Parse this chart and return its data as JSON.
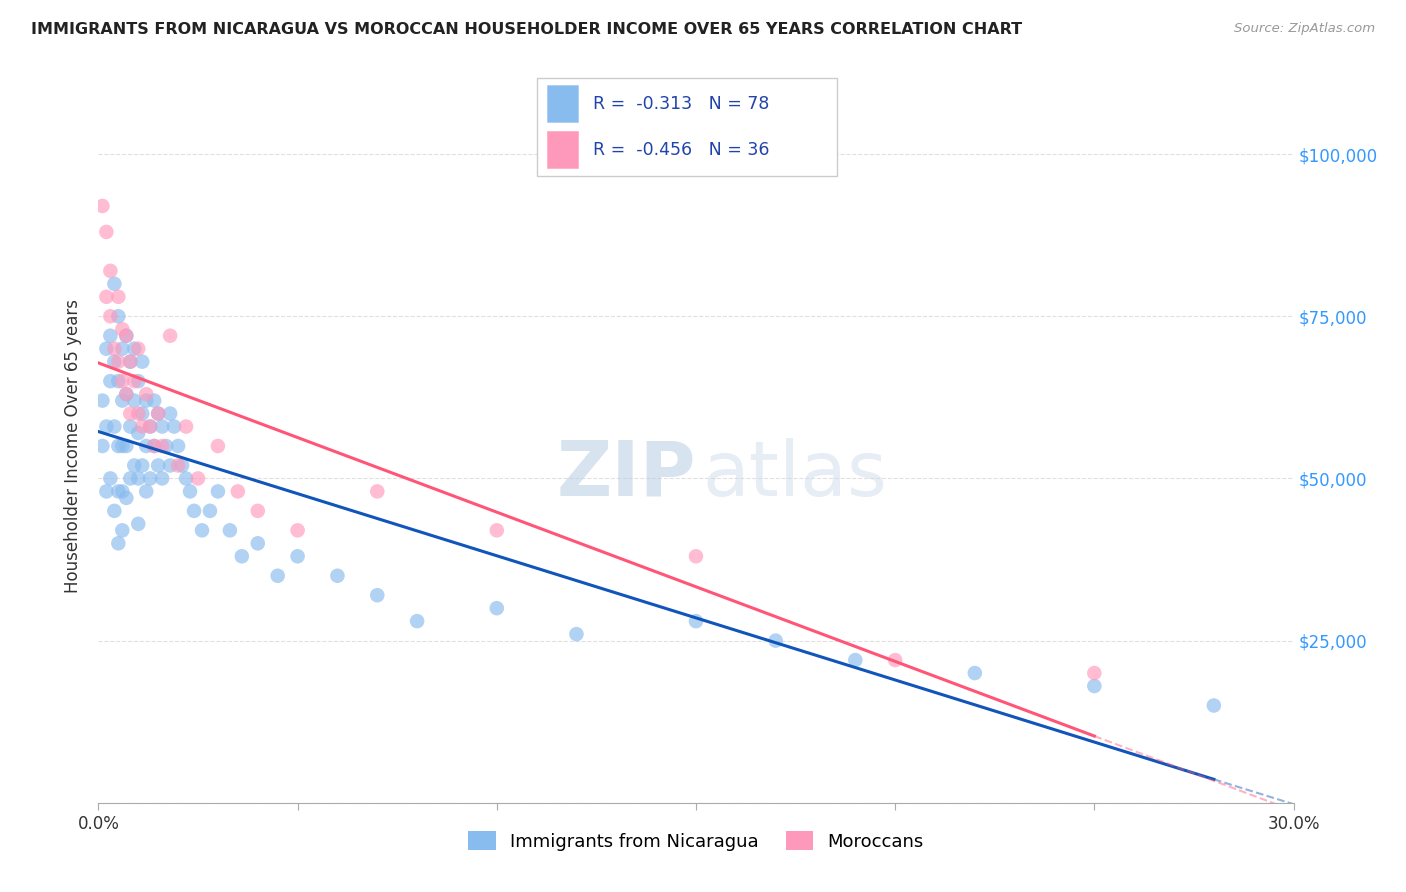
{
  "title": "IMMIGRANTS FROM NICARAGUA VS MOROCCAN HOUSEHOLDER INCOME OVER 65 YEARS CORRELATION CHART",
  "source": "Source: ZipAtlas.com",
  "ylabel": "Householder Income Over 65 years",
  "legend_label1": "Immigrants from Nicaragua",
  "legend_label2": "Moroccans",
  "r1": -0.313,
  "n1": 78,
  "r2": -0.456,
  "n2": 36,
  "yticks": [
    0,
    25000,
    50000,
    75000,
    100000
  ],
  "ytick_labels": [
    "",
    "$25,000",
    "$50,000",
    "$75,000",
    "$100,000"
  ],
  "xlim": [
    0.0,
    0.3
  ],
  "ylim": [
    0,
    110000
  ],
  "color_blue": "#88BBEE",
  "color_pink": "#FF99BB",
  "color_blue_line": "#1155BB",
  "color_pink_line": "#FF5577",
  "nicaragua_x": [
    0.001,
    0.001,
    0.002,
    0.002,
    0.002,
    0.003,
    0.003,
    0.003,
    0.004,
    0.004,
    0.004,
    0.004,
    0.005,
    0.005,
    0.005,
    0.005,
    0.005,
    0.006,
    0.006,
    0.006,
    0.006,
    0.006,
    0.007,
    0.007,
    0.007,
    0.007,
    0.008,
    0.008,
    0.008,
    0.009,
    0.009,
    0.009,
    0.01,
    0.01,
    0.01,
    0.01,
    0.011,
    0.011,
    0.011,
    0.012,
    0.012,
    0.012,
    0.013,
    0.013,
    0.014,
    0.014,
    0.015,
    0.015,
    0.016,
    0.016,
    0.017,
    0.018,
    0.018,
    0.019,
    0.02,
    0.021,
    0.022,
    0.023,
    0.024,
    0.026,
    0.028,
    0.03,
    0.033,
    0.036,
    0.04,
    0.045,
    0.05,
    0.06,
    0.07,
    0.08,
    0.1,
    0.12,
    0.15,
    0.17,
    0.19,
    0.22,
    0.25,
    0.28
  ],
  "nicaragua_y": [
    62000,
    55000,
    70000,
    58000,
    48000,
    72000,
    65000,
    50000,
    80000,
    68000,
    58000,
    45000,
    75000,
    65000,
    55000,
    48000,
    40000,
    70000,
    62000,
    55000,
    48000,
    42000,
    72000,
    63000,
    55000,
    47000,
    68000,
    58000,
    50000,
    70000,
    62000,
    52000,
    65000,
    57000,
    50000,
    43000,
    68000,
    60000,
    52000,
    62000,
    55000,
    48000,
    58000,
    50000,
    62000,
    55000,
    60000,
    52000,
    58000,
    50000,
    55000,
    60000,
    52000,
    58000,
    55000,
    52000,
    50000,
    48000,
    45000,
    42000,
    45000,
    48000,
    42000,
    38000,
    40000,
    35000,
    38000,
    35000,
    32000,
    28000,
    30000,
    26000,
    28000,
    25000,
    22000,
    20000,
    18000,
    15000
  ],
  "moroccan_x": [
    0.001,
    0.002,
    0.002,
    0.003,
    0.003,
    0.004,
    0.005,
    0.005,
    0.006,
    0.006,
    0.007,
    0.007,
    0.008,
    0.008,
    0.009,
    0.01,
    0.01,
    0.011,
    0.012,
    0.013,
    0.014,
    0.015,
    0.016,
    0.018,
    0.02,
    0.022,
    0.025,
    0.03,
    0.035,
    0.04,
    0.05,
    0.07,
    0.1,
    0.15,
    0.2,
    0.25
  ],
  "moroccan_y": [
    92000,
    88000,
    78000,
    82000,
    75000,
    70000,
    78000,
    68000,
    73000,
    65000,
    72000,
    63000,
    68000,
    60000,
    65000,
    70000,
    60000,
    58000,
    63000,
    58000,
    55000,
    60000,
    55000,
    72000,
    52000,
    58000,
    50000,
    55000,
    48000,
    45000,
    42000,
    48000,
    42000,
    38000,
    22000,
    20000
  ],
  "watermark_zip": "ZIP",
  "watermark_atlas": "atlas",
  "grid_color": "#DDDDDD"
}
